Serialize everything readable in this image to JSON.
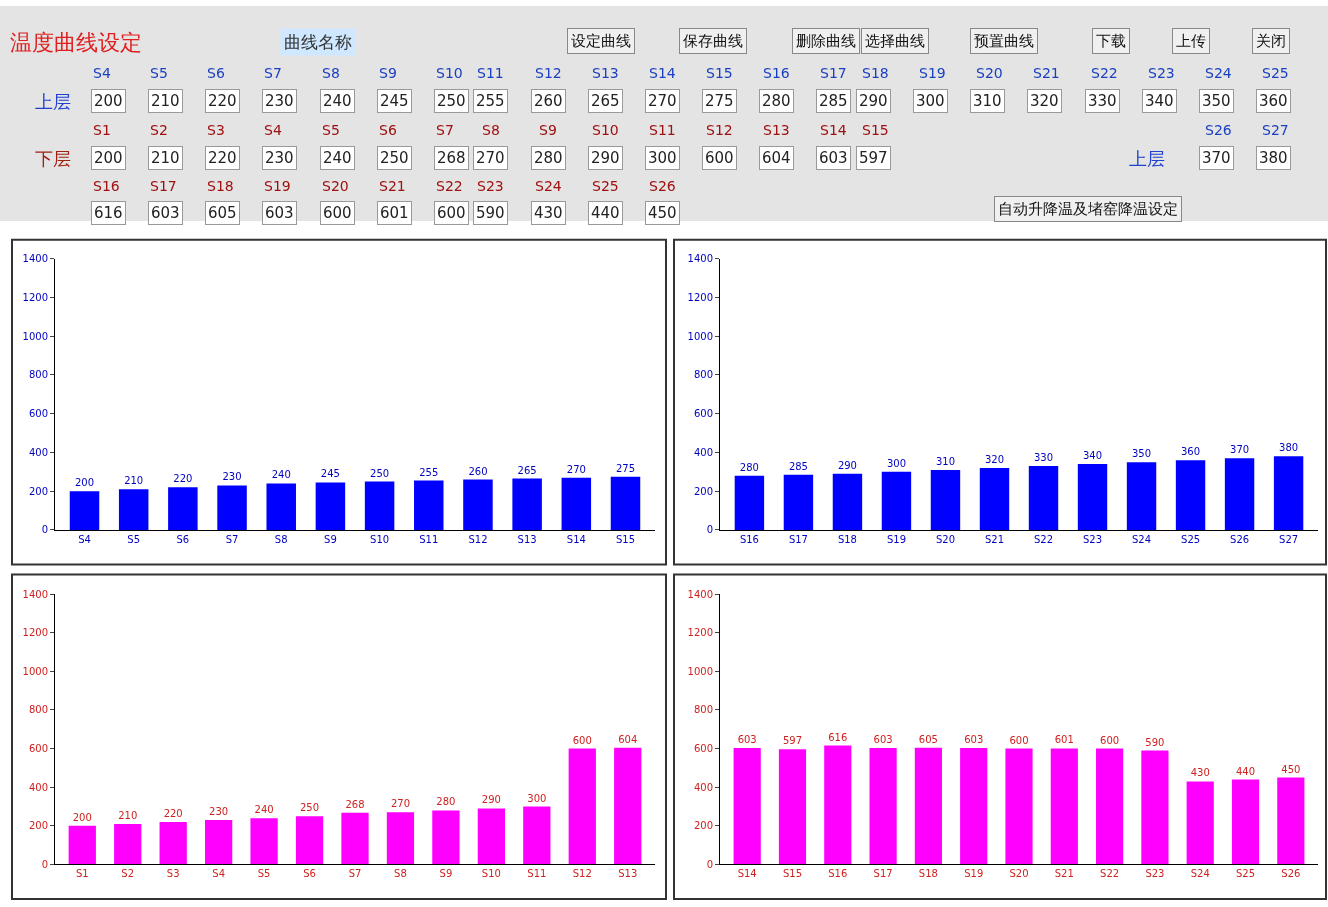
{
  "chart_data": [
    {
      "type": "other",
      "title": "温度曲线设定",
      "annotations": [
        "曲线名称",
        "设定曲线",
        "保存曲线",
        "删除曲线",
        "选择曲线",
        "预置曲线",
        "下载",
        "上传",
        "关闭",
        "上层",
        "S4",
        "S5",
        "S6",
        "S7",
        "S8",
        "S9",
        "S10",
        "S11",
        "S12",
        "S13",
        "S14",
        "S15",
        "S16",
        "S17",
        "S18",
        "S19",
        "S20",
        "S21",
        "S22",
        "S23",
        "S24",
        "S25",
        "200",
        "210",
        "220",
        "230",
        "240",
        "245",
        "250",
        "255",
        "260",
        "265",
        "270",
        "275",
        "280",
        "285",
        "290",
        "300",
        "310",
        "320",
        "330",
        "340",
        "350",
        "360",
        "下层",
        "S1",
        "S2",
        "S3",
        "S4",
        "S5",
        "S6",
        "S7",
        "S8",
        "S9",
        "S10",
        "S11",
        "S12",
        "S13",
        "S14",
        "S15",
        "200",
        "210",
        "220",
        "230",
        "240",
        "250",
        "268",
        "270",
        "280",
        "290",
        "300",
        "600",
        "604",
        "603",
        "597",
        "上层",
        "S26",
        "S27",
        "370",
        "380",
        "S16",
        "S17",
        "S18",
        "S19",
        "S20",
        "S21",
        "S22",
        "S23",
        "S24",
        "S25",
        "S26",
        "616",
        "603",
        "605",
        "603",
        "600",
        "601",
        "600",
        "590",
        "430",
        "440",
        "450",
        "自动升降温及堵窑降温设定"
      ]
    },
    {
      "type": "bar",
      "categories": [
        "S4",
        "S5",
        "S6",
        "S7",
        "S8",
        "S9",
        "S10",
        "S11",
        "S12",
        "S13",
        "S14",
        "S15"
      ],
      "values": [
        200,
        210,
        220,
        230,
        240,
        245,
        250,
        255,
        260,
        265,
        270,
        275
      ],
      "color": "#0000ff",
      "ylim": [
        0,
        1400
      ],
      "yticks": [
        0,
        200,
        400,
        600,
        800,
        1000,
        1200,
        1400
      ],
      "data_labels": true
    },
    {
      "type": "bar",
      "categories": [
        "S16",
        "S17",
        "S18",
        "S19",
        "S20",
        "S21",
        "S22",
        "S23",
        "S24",
        "S25",
        "S26",
        "S27"
      ],
      "values": [
        280,
        285,
        290,
        300,
        310,
        320,
        330,
        340,
        350,
        360,
        370,
        380
      ],
      "color": "#0000ff",
      "ylim": [
        0,
        1400
      ],
      "yticks": [
        0,
        200,
        400,
        600,
        800,
        1000,
        1200,
        1400
      ],
      "data_labels": true
    },
    {
      "type": "bar",
      "categories": [
        "S1",
        "S2",
        "S3",
        "S4",
        "S5",
        "S6",
        "S7",
        "S8",
        "S9",
        "S10",
        "S11",
        "S12",
        "S13"
      ],
      "values": [
        200,
        210,
        220,
        230,
        240,
        250,
        268,
        270,
        280,
        290,
        300,
        600,
        604
      ],
      "color": "#ff00ff",
      "ylim": [
        0,
        1400
      ],
      "yticks": [
        0,
        200,
        400,
        600,
        800,
        1000,
        1200,
        1400
      ],
      "data_labels": true
    },
    {
      "type": "bar",
      "categories": [
        "S14",
        "S15",
        "S16",
        "S17",
        "S18",
        "S19",
        "S20",
        "S21",
        "S22",
        "S23",
        "S24",
        "S25",
        "S26"
      ],
      "values": [
        603,
        597,
        616,
        603,
        605,
        603,
        600,
        601,
        600,
        590,
        430,
        440,
        450
      ],
      "color": "#ff00ff",
      "ylim": [
        0,
        1400
      ],
      "yticks": [
        0,
        200,
        400,
        600,
        800,
        1000,
        1200,
        1400
      ],
      "data_labels": true
    }
  ]
}
